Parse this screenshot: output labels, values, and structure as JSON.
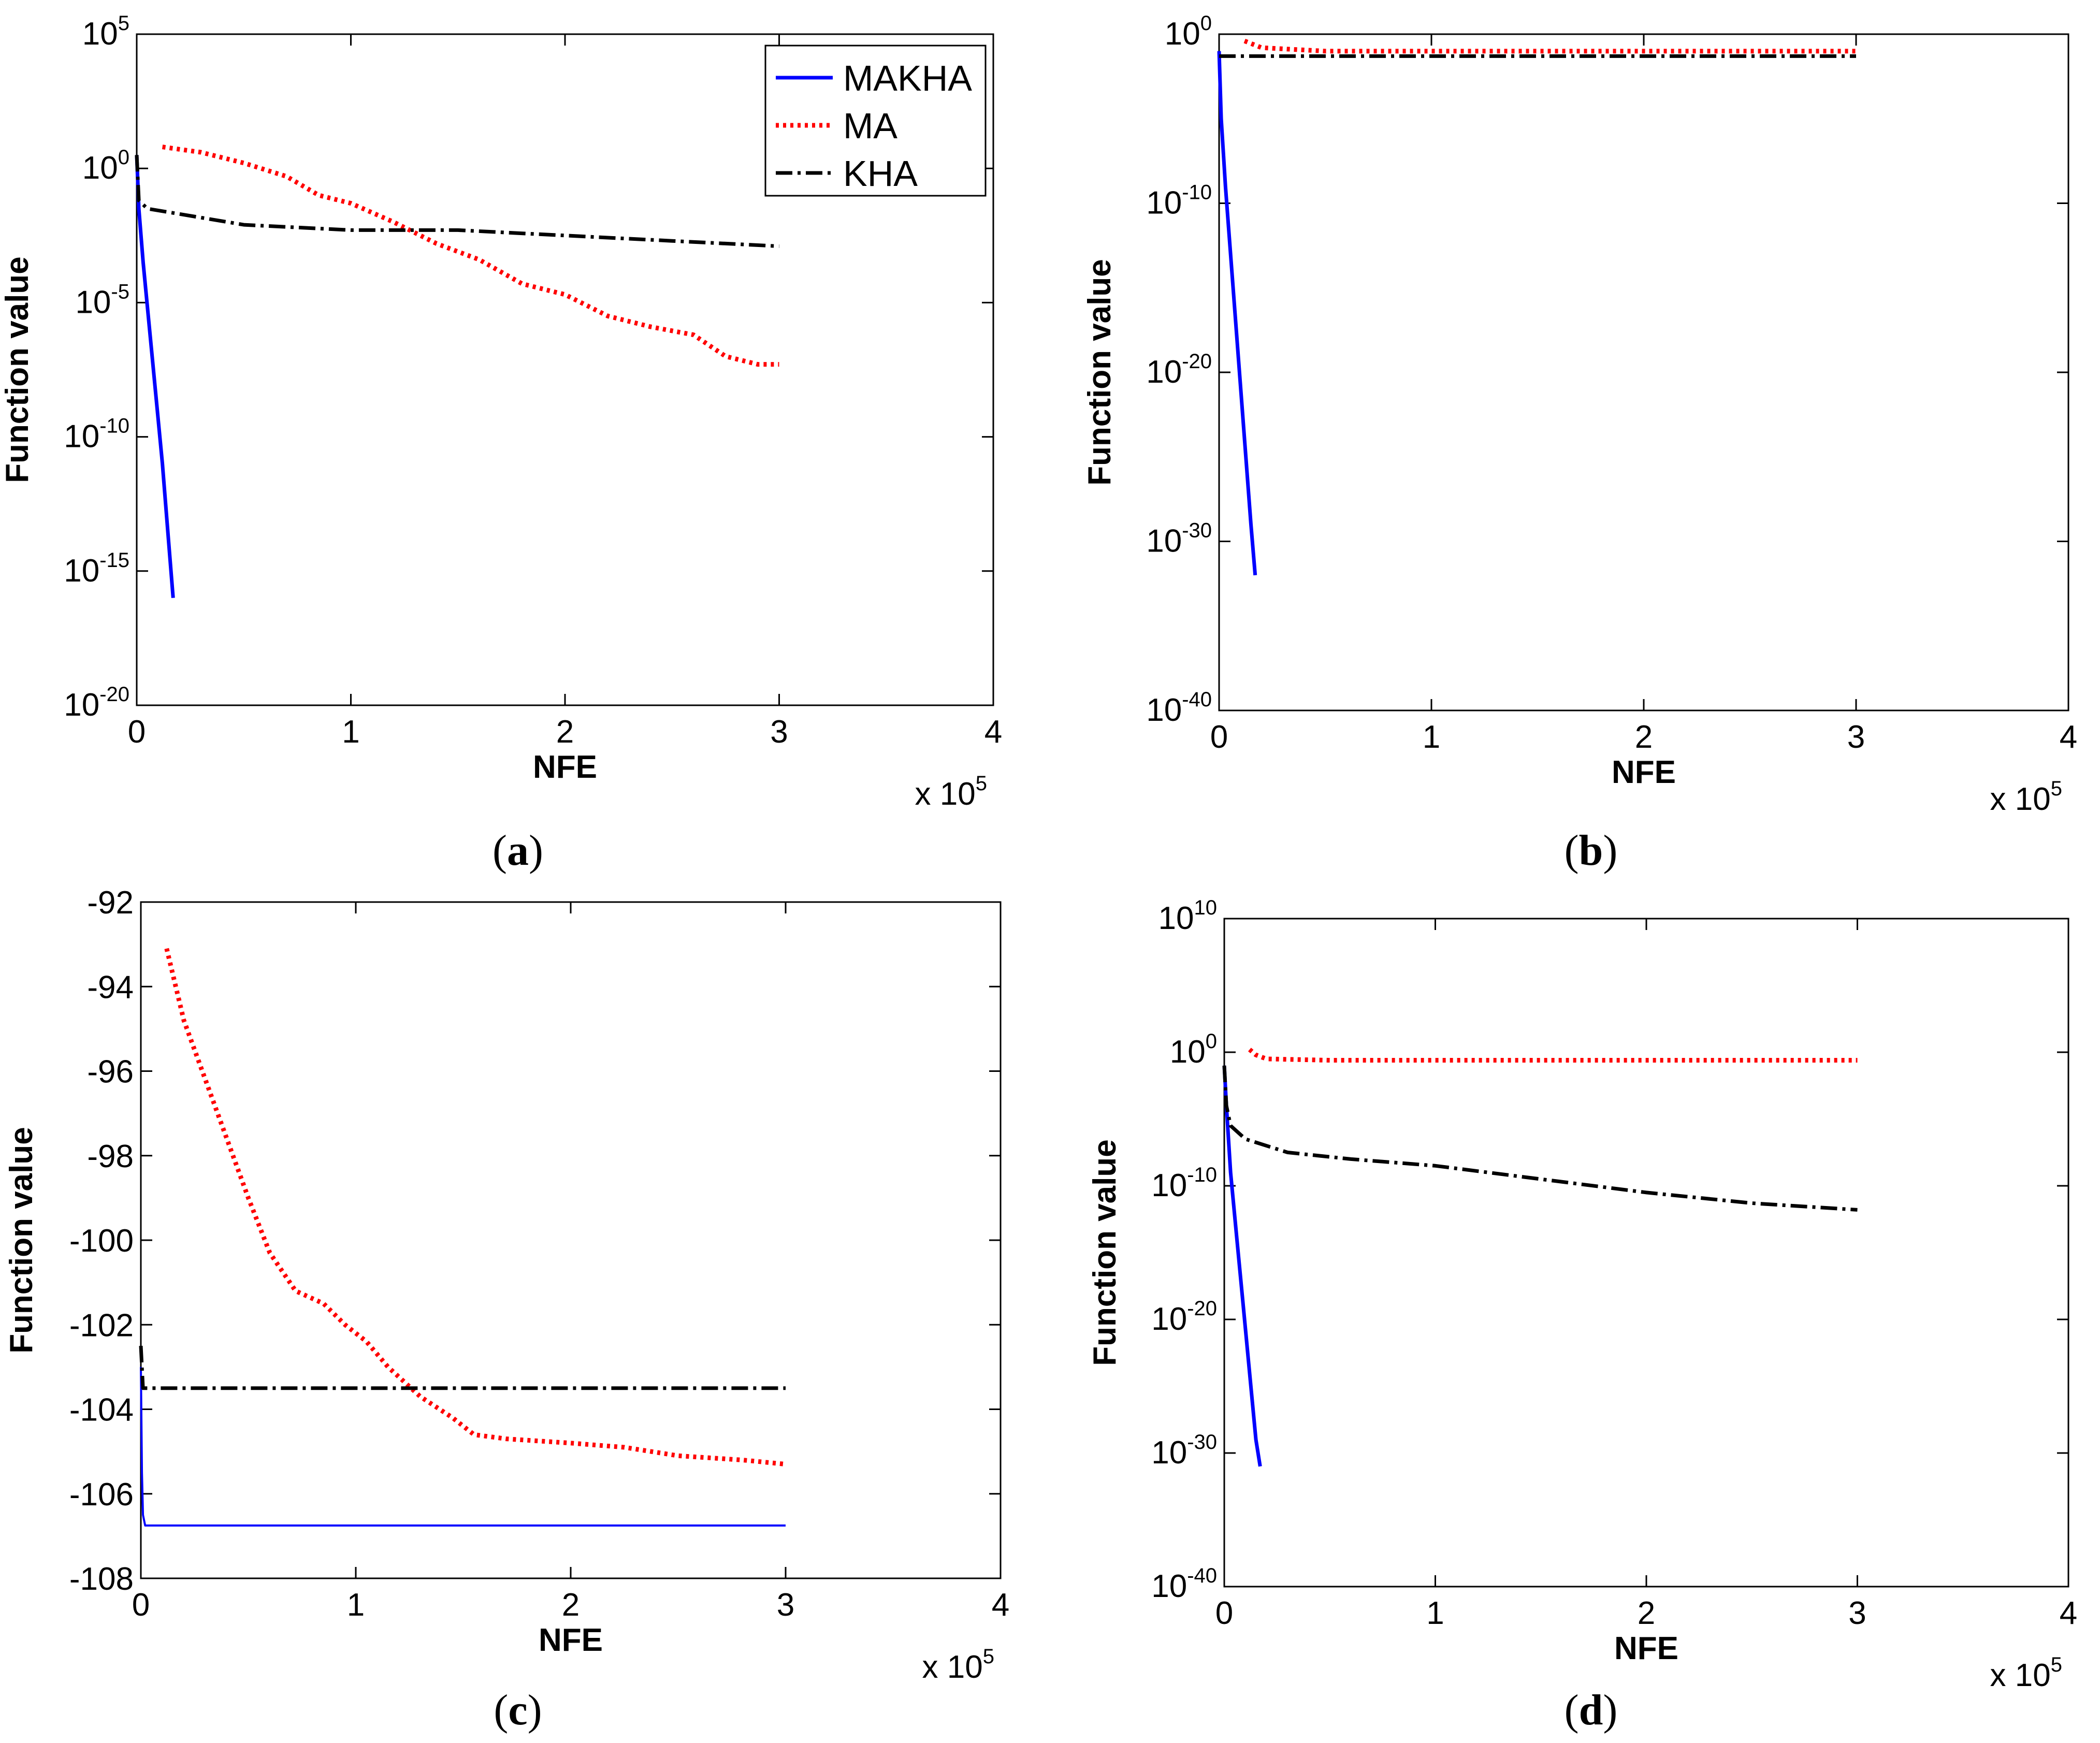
{
  "figure": {
    "captions": [
      "(a)",
      "(b)",
      "(c)",
      "(d)"
    ],
    "caption_letters": [
      "a",
      "b",
      "c",
      "d"
    ]
  },
  "colors": {
    "MAKHA": "#0000ff",
    "MA": "#ff0000",
    "KHA": "#000000"
  },
  "chart_data": [
    {
      "id": "a",
      "type": "line",
      "yscale": "log",
      "xlabel": "NFE",
      "ylabel": "Function value",
      "x_multiplier": "x 10",
      "x_multiplier_exp": "5",
      "xlim": [
        0,
        4
      ],
      "ylim_exp": [
        -20,
        5
      ],
      "x_ticks": [
        "0",
        "1",
        "2",
        "3",
        "4"
      ],
      "y_tick_base": "10",
      "y_tick_exps": [
        "5",
        "0",
        "-5",
        "-10",
        "-15",
        "-20"
      ],
      "legend": {
        "position": "top-right",
        "entries": [
          {
            "name": "MAKHA",
            "style": "solid"
          },
          {
            "name": "MA",
            "style": "dotted"
          },
          {
            "name": "KHA",
            "style": "dashdot"
          }
        ]
      },
      "series": [
        {
          "name": "MAKHA",
          "style": "solid",
          "x": [
            0,
            0.01,
            0.03,
            0.06,
            0.09,
            0.12,
            0.15,
            0.17
          ],
          "y": [
            0.5,
            -1.5,
            -3.5,
            -6,
            -8.5,
            -11,
            -14,
            -16
          ]
        },
        {
          "name": "MA",
          "style": "dotted",
          "x": [
            0.12,
            0.3,
            0.5,
            0.7,
            0.85,
            1.0,
            1.2,
            1.4,
            1.6,
            1.8,
            2.0,
            2.2,
            2.4,
            2.6,
            2.75,
            2.9,
            3.0
          ],
          "y": [
            0.8,
            0.6,
            0.2,
            -0.3,
            -1.0,
            -1.3,
            -2.0,
            -2.8,
            -3.4,
            -4.3,
            -4.7,
            -5.5,
            -5.9,
            -6.2,
            -7.0,
            -7.3,
            -7.3
          ]
        },
        {
          "name": "KHA",
          "style": "dashdot",
          "x": [
            0,
            0.01,
            0.05,
            0.2,
            0.5,
            1.0,
            1.5,
            2.0,
            2.5,
            3.0
          ],
          "y": [
            0.5,
            -1.2,
            -1.5,
            -1.7,
            -2.1,
            -2.3,
            -2.3,
            -2.5,
            -2.7,
            -2.9
          ]
        }
      ]
    },
    {
      "id": "b",
      "type": "line",
      "yscale": "log",
      "xlabel": "NFE",
      "ylabel": "Function value",
      "x_multiplier": "x 10",
      "x_multiplier_exp": "5",
      "xlim": [
        0,
        4
      ],
      "ylim_exp": [
        -40,
        0
      ],
      "x_ticks": [
        "0",
        "1",
        "2",
        "3",
        "4"
      ],
      "y_tick_base": "10",
      "y_tick_exps": [
        "0",
        "-10",
        "-20",
        "-30",
        "-40"
      ],
      "series": [
        {
          "name": "MAKHA",
          "style": "solid",
          "x": [
            0,
            0.01,
            0.03,
            0.06,
            0.09,
            0.12,
            0.15,
            0.17
          ],
          "y": [
            -1,
            -5,
            -9,
            -14,
            -19,
            -24,
            -29,
            -32
          ]
        },
        {
          "name": "MA",
          "style": "dotted",
          "x": [
            0.12,
            0.2,
            0.5,
            1.0,
            2.0,
            3.0
          ],
          "y": [
            -0.4,
            -0.8,
            -1.0,
            -1.0,
            -1.0,
            -1.0
          ]
        },
        {
          "name": "KHA",
          "style": "dashdot",
          "x": [
            0,
            0.05,
            0.5,
            1.0,
            2.0,
            3.0
          ],
          "y": [
            -1.3,
            -1.3,
            -1.3,
            -1.3,
            -1.3,
            -1.3
          ]
        }
      ]
    },
    {
      "id": "c",
      "type": "line",
      "yscale": "linear",
      "xlabel": "NFE",
      "ylabel": "Function value",
      "x_multiplier": "x 10",
      "x_multiplier_exp": "5",
      "xlim": [
        0,
        4
      ],
      "ylim": [
        -108,
        -92
      ],
      "x_ticks": [
        "0",
        "1",
        "2",
        "3",
        "4"
      ],
      "y_ticks": [
        "-92",
        "-94",
        "-96",
        "-98",
        "-100",
        "-102",
        "-104",
        "-106",
        "-108"
      ],
      "series": [
        {
          "name": "MAKHA",
          "style": "solid",
          "x": [
            0,
            0.005,
            0.01,
            0.02,
            0.05,
            1.0,
            2.0,
            3.0
          ],
          "y": [
            -103.0,
            -105.5,
            -106.5,
            -106.75,
            -106.75,
            -106.75,
            -106.75,
            -106.75
          ]
        },
        {
          "name": "MA",
          "style": "dotted",
          "x": [
            0.12,
            0.2,
            0.3,
            0.4,
            0.5,
            0.6,
            0.72,
            0.85,
            0.95,
            1.05,
            1.15,
            1.3,
            1.45,
            1.55,
            1.7,
            2.0,
            2.25,
            2.5,
            2.8,
            3.0
          ],
          "y": [
            -93.1,
            -94.8,
            -96.2,
            -97.6,
            -99.0,
            -100.3,
            -101.2,
            -101.5,
            -102.0,
            -102.4,
            -103.0,
            -103.7,
            -104.2,
            -104.6,
            -104.7,
            -104.8,
            -104.9,
            -105.1,
            -105.2,
            -105.3
          ]
        },
        {
          "name": "KHA",
          "style": "dashdot",
          "x": [
            0,
            0.01,
            0.5,
            1.0,
            2.0,
            3.0
          ],
          "y": [
            -102.5,
            -103.5,
            -103.5,
            -103.5,
            -103.5,
            -103.5
          ]
        }
      ]
    },
    {
      "id": "d",
      "type": "line",
      "yscale": "log",
      "xlabel": "NFE",
      "ylabel": "Function value",
      "x_multiplier": "x 10",
      "x_multiplier_exp": "5",
      "xlim": [
        0,
        4
      ],
      "ylim_exp": [
        -40,
        10
      ],
      "x_ticks": [
        "0",
        "1",
        "2",
        "3",
        "4"
      ],
      "y_tick_base": "10",
      "y_tick_exps": [
        "10",
        "0",
        "-10",
        "-20",
        "-30",
        "-40"
      ],
      "series": [
        {
          "name": "MAKHA",
          "style": "solid",
          "x": [
            0,
            0.01,
            0.03,
            0.06,
            0.09,
            0.12,
            0.15,
            0.17
          ],
          "y": [
            -1,
            -4,
            -9,
            -14,
            -19,
            -24,
            -29,
            -31
          ]
        },
        {
          "name": "MA",
          "style": "dotted",
          "x": [
            0.12,
            0.15,
            0.2,
            0.5,
            1.0,
            2.0,
            3.0
          ],
          "y": [
            0.2,
            -0.2,
            -0.5,
            -0.6,
            -0.6,
            -0.6,
            -0.6
          ]
        },
        {
          "name": "KHA",
          "style": "dashdot",
          "x": [
            0,
            0.01,
            0.03,
            0.1,
            0.3,
            0.6,
            1.0,
            1.5,
            2.0,
            2.5,
            3.0
          ],
          "y": [
            -1.0,
            -4.0,
            -5.5,
            -6.5,
            -7.5,
            -8.0,
            -8.5,
            -9.5,
            -10.5,
            -11.3,
            -11.8
          ]
        }
      ]
    }
  ]
}
